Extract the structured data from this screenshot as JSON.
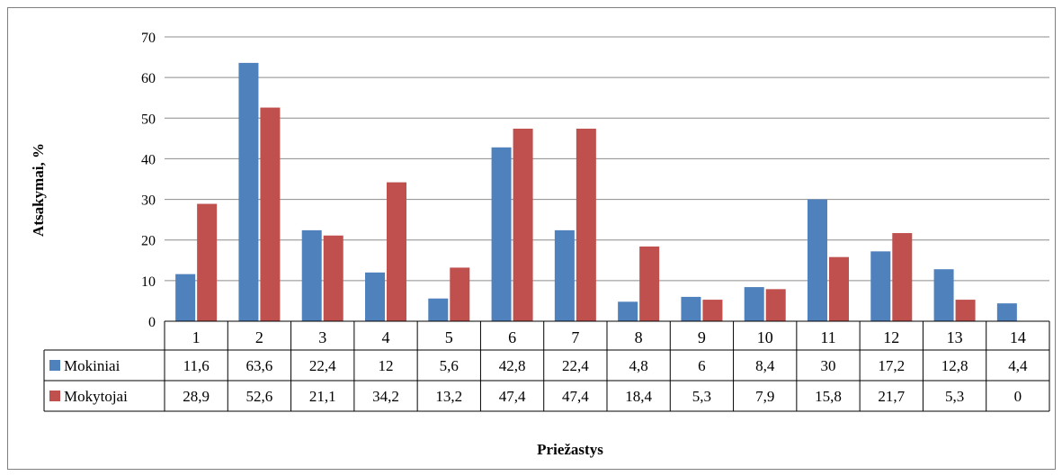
{
  "chart_data": {
    "type": "bar",
    "categories": [
      "1",
      "2",
      "3",
      "4",
      "5",
      "6",
      "7",
      "8",
      "9",
      "10",
      "11",
      "12",
      "13",
      "14"
    ],
    "series": [
      {
        "name": "Mokiniai",
        "color": "#4f81bd",
        "values": [
          11.6,
          63.6,
          22.4,
          12,
          5.6,
          42.8,
          22.4,
          4.8,
          6,
          8.4,
          30,
          17.2,
          12.8,
          4.4
        ],
        "labels": [
          "11,6",
          "63,6",
          "22,4",
          "12",
          "5,6",
          "42,8",
          "22,4",
          "4,8",
          "6",
          "8,4",
          "30",
          "17,2",
          "12,8",
          "4,4"
        ]
      },
      {
        "name": "Mokytojai",
        "color": "#c0504d",
        "values": [
          28.9,
          52.6,
          21.1,
          34.2,
          13.2,
          47.4,
          47.4,
          18.4,
          5.3,
          7.9,
          15.8,
          21.7,
          5.3,
          0
        ],
        "labels": [
          "28,9",
          "52,6",
          "21,1",
          "34,2",
          "13,2",
          "47,4",
          "47,4",
          "18,4",
          "5,3",
          "7,9",
          "15,8",
          "21,7",
          "5,3",
          "0"
        ]
      }
    ],
    "yticks": [
      "0",
      "10",
      "20",
      "30",
      "40",
      "50",
      "60",
      "70"
    ],
    "ylim": [
      0,
      70
    ],
    "xlabel": "Priežastys",
    "ylabel": "Atsakymai, %",
    "grid": true,
    "legend": "data-table"
  }
}
